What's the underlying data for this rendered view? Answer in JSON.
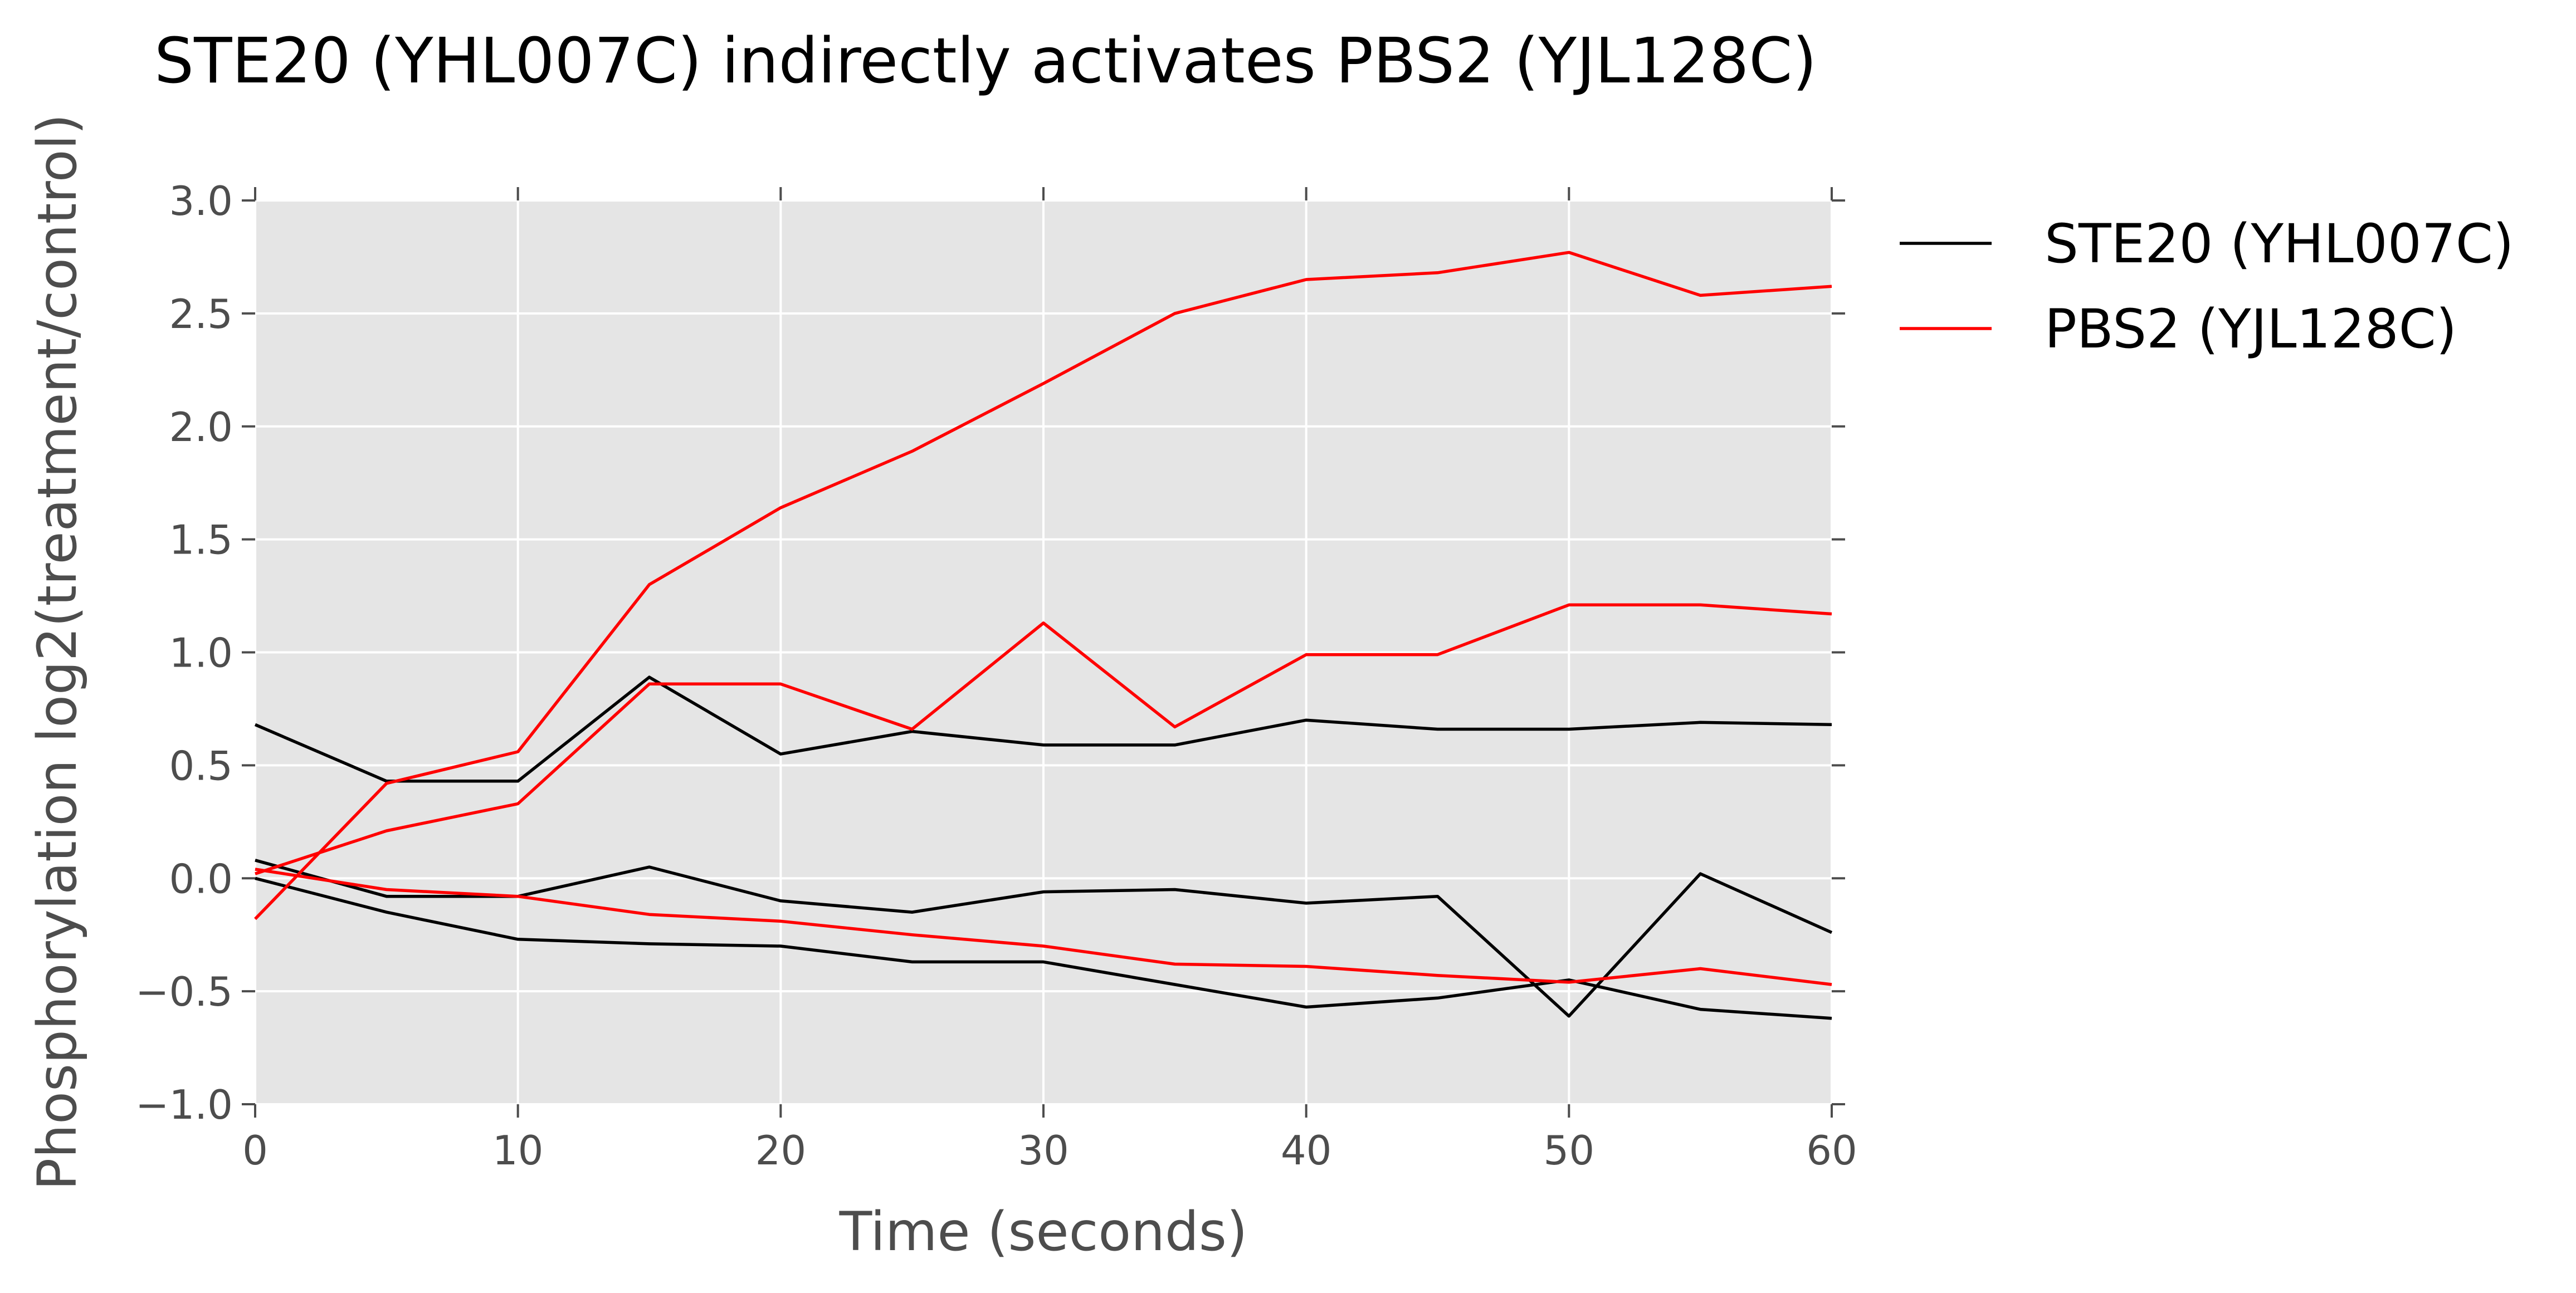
{
  "chart_data": {
    "type": "line",
    "title": "STE20 (YHL007C) indirectly activates PBS2 (YJL128C)",
    "xlabel": "Time (seconds)",
    "ylabel": "Phosphorylation log2(treatment/control)",
    "xlim": [
      0,
      60
    ],
    "ylim": [
      -1.0,
      3.0
    ],
    "xticks": [
      0,
      10,
      20,
      30,
      40,
      50,
      60
    ],
    "xtick_labels": [
      "0",
      "10",
      "20",
      "30",
      "40",
      "50",
      "60"
    ],
    "yticks": [
      3.0,
      2.5,
      2.0,
      1.5,
      1.0,
      0.5,
      0.0,
      -0.5,
      -1.0
    ],
    "ytick_labels": [
      "3.0",
      "2.5",
      "2.0",
      "1.5",
      "1.0",
      "0.5",
      "0.0",
      "−0.5",
      "−1.0"
    ],
    "grid": true,
    "background": "#e5e5e5",
    "legend_position": "outside-right",
    "x": [
      0,
      5,
      10,
      15,
      20,
      25,
      30,
      35,
      40,
      45,
      50,
      55,
      60
    ],
    "legend": [
      {
        "label": "STE20 (YHL007C)",
        "color": "#000000"
      },
      {
        "label": "PBS2 (YJL128C)",
        "color": "#ff0000"
      }
    ],
    "series": [
      {
        "group": "STE20 (YHL007C)",
        "color": "#000000",
        "values": [
          0.68,
          0.43,
          0.43,
          0.89,
          0.55,
          0.65,
          0.59,
          0.59,
          0.7,
          0.66,
          0.66,
          0.69,
          0.68
        ]
      },
      {
        "group": "STE20 (YHL007C)",
        "color": "#000000",
        "values": [
          0.08,
          -0.08,
          -0.08,
          0.05,
          -0.1,
          -0.15,
          -0.06,
          -0.05,
          -0.11,
          -0.08,
          -0.61,
          0.02,
          -0.24
        ]
      },
      {
        "group": "STE20 (YHL007C)",
        "color": "#000000",
        "values": [
          0.0,
          -0.15,
          -0.27,
          -0.29,
          -0.3,
          -0.37,
          -0.37,
          -0.47,
          -0.57,
          -0.53,
          -0.45,
          -0.58,
          -0.62
        ]
      },
      {
        "group": "PBS2 (YJL128C)",
        "color": "#ff0000",
        "values": [
          -0.18,
          0.42,
          0.56,
          1.3,
          1.64,
          1.89,
          2.19,
          2.5,
          2.65,
          2.68,
          2.77,
          2.58,
          2.62
        ]
      },
      {
        "group": "PBS2 (YJL128C)",
        "color": "#ff0000",
        "values": [
          0.02,
          0.21,
          0.33,
          0.86,
          0.86,
          0.66,
          1.13,
          0.67,
          0.99,
          0.99,
          1.21,
          1.21,
          1.17
        ]
      },
      {
        "group": "PBS2 (YJL128C)",
        "color": "#ff0000",
        "values": [
          0.04,
          -0.05,
          -0.08,
          -0.16,
          -0.19,
          -0.25,
          -0.3,
          -0.38,
          -0.39,
          -0.43,
          -0.46,
          -0.4,
          -0.47
        ]
      }
    ]
  }
}
